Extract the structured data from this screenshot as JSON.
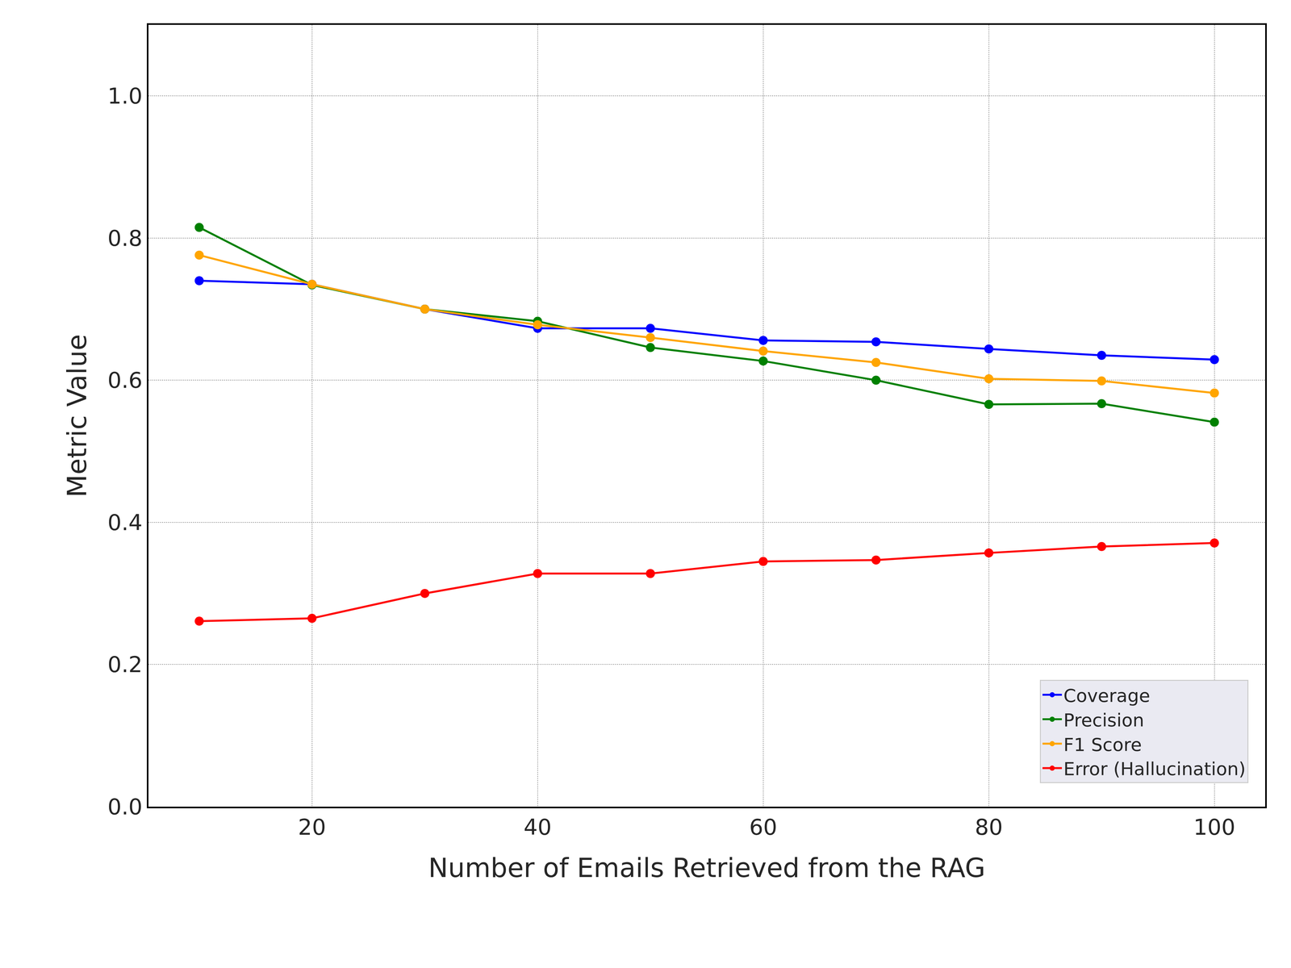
{
  "chart_data": {
    "type": "line",
    "x_label": "Number of Emails Retrieved from the RAG",
    "y_label": "Metric Value",
    "x": [
      10,
      20,
      30,
      40,
      50,
      60,
      70,
      80,
      90,
      100
    ],
    "series": [
      {
        "name": "Coverage",
        "color": "#0000ff",
        "marker": "circle",
        "values": [
          0.74,
          0.735,
          0.7,
          0.673,
          0.673,
          0.656,
          0.654,
          0.644,
          0.635,
          0.629
        ]
      },
      {
        "name": "Precision",
        "color": "#008000",
        "marker": "circle",
        "values": [
          0.815,
          0.734,
          0.7,
          0.683,
          0.646,
          0.627,
          0.6,
          0.566,
          0.567,
          0.541
        ]
      },
      {
        "name": "F1 Score",
        "color": "#ffa500",
        "marker": "circle",
        "values": [
          0.776,
          0.735,
          0.7,
          0.678,
          0.66,
          0.641,
          0.625,
          0.602,
          0.599,
          0.582
        ]
      },
      {
        "name": "Error (Hallucination)",
        "color": "#ff0000",
        "marker": "circle",
        "values": [
          0.261,
          0.265,
          0.3,
          0.328,
          0.328,
          0.345,
          0.347,
          0.357,
          0.366,
          0.371
        ]
      }
    ],
    "xlim": [
      5.5,
      104.5
    ],
    "xticks": [
      20,
      40,
      60,
      80,
      100
    ],
    "ylim": [
      0,
      1.1
    ],
    "yticks": [
      {
        "value": 0,
        "label": "0.0"
      },
      0.2,
      0.4,
      0.6,
      0.8,
      {
        "value": 1,
        "label": "1.0"
      }
    ],
    "grid": true,
    "legend": "lower right"
  }
}
